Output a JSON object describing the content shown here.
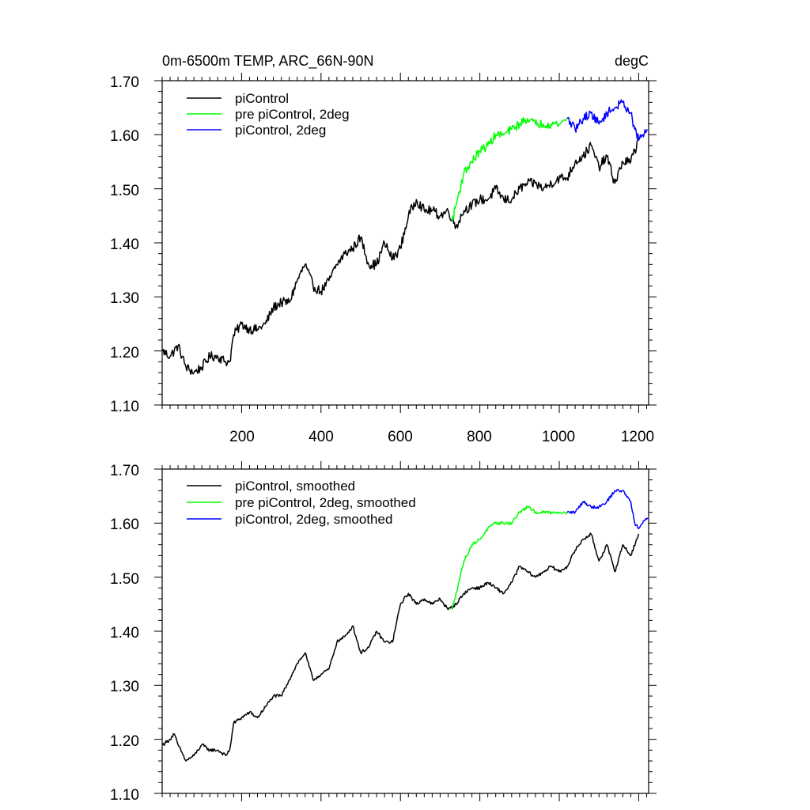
{
  "chart_data": [
    {
      "type": "line",
      "title": "0m-6500m TEMP, ARC_66N-90N",
      "units": "degC",
      "xlim": [
        0,
        1225
      ],
      "ylim": [
        1.1,
        1.7
      ],
      "yticks": [
        "1.10",
        "1.20",
        "1.30",
        "1.40",
        "1.50",
        "1.60",
        "1.70"
      ],
      "xticks": [
        "200",
        "400",
        "600",
        "800",
        "1000",
        "1200"
      ],
      "legend_position": "top-left",
      "series": [
        {
          "name": "piControl",
          "color": "#000000",
          "noise": 0.009,
          "x": [
            1,
            20,
            40,
            60,
            80,
            100,
            120,
            140,
            160,
            170,
            180,
            200,
            220,
            240,
            260,
            280,
            300,
            320,
            340,
            360,
            380,
            400,
            420,
            440,
            460,
            480,
            500,
            520,
            540,
            560,
            580,
            600,
            620,
            640,
            660,
            680,
            700,
            720,
            740,
            760,
            780,
            800,
            820,
            840,
            860,
            880,
            900,
            920,
            940,
            960,
            980,
            1000,
            1020,
            1040,
            1060,
            1080,
            1100,
            1120,
            1140,
            1160,
            1180,
            1200
          ],
          "values": [
            1.2,
            1.19,
            1.21,
            1.17,
            1.16,
            1.17,
            1.19,
            1.19,
            1.18,
            1.18,
            1.23,
            1.25,
            1.24,
            1.24,
            1.25,
            1.28,
            1.29,
            1.29,
            1.33,
            1.36,
            1.32,
            1.31,
            1.33,
            1.36,
            1.38,
            1.39,
            1.41,
            1.36,
            1.36,
            1.4,
            1.37,
            1.39,
            1.45,
            1.48,
            1.46,
            1.46,
            1.45,
            1.46,
            1.43,
            1.46,
            1.47,
            1.48,
            1.48,
            1.5,
            1.48,
            1.48,
            1.5,
            1.51,
            1.51,
            1.5,
            1.51,
            1.52,
            1.52,
            1.55,
            1.56,
            1.58,
            1.54,
            1.56,
            1.51,
            1.55,
            1.55,
            1.59
          ]
        },
        {
          "name": "pre piControl, 2deg",
          "color": "#00ff00",
          "noise": 0.008,
          "x": [
            730,
            740,
            760,
            780,
            800,
            820,
            840,
            860,
            880,
            900,
            920,
            940,
            960,
            980,
            1000,
            1020
          ],
          "values": [
            1.44,
            1.47,
            1.53,
            1.55,
            1.57,
            1.58,
            1.6,
            1.6,
            1.61,
            1.62,
            1.63,
            1.62,
            1.62,
            1.62,
            1.62,
            1.63
          ]
        },
        {
          "name": "piControl, 2deg",
          "color": "#0000ff",
          "noise": 0.008,
          "x": [
            1020,
            1040,
            1060,
            1080,
            1100,
            1120,
            1140,
            1160,
            1180,
            1190,
            1200,
            1210,
            1222
          ],
          "values": [
            1.63,
            1.61,
            1.63,
            1.64,
            1.62,
            1.64,
            1.65,
            1.66,
            1.64,
            1.61,
            1.59,
            1.6,
            1.61
          ]
        }
      ]
    },
    {
      "type": "line",
      "xlim": [
        0,
        1225
      ],
      "ylim": [
        1.1,
        1.7
      ],
      "yticks": [
        "1.10",
        "1.20",
        "1.30",
        "1.40",
        "1.50",
        "1.60",
        "1.70"
      ],
      "legend_position": "top-left",
      "series": [
        {
          "name": "piControl, smoothed",
          "color": "#000000",
          "noise": 0.003,
          "x": [
            1,
            20,
            30,
            40,
            60,
            80,
            100,
            120,
            140,
            160,
            170,
            180,
            200,
            220,
            240,
            260,
            280,
            300,
            320,
            340,
            360,
            380,
            400,
            420,
            440,
            460,
            480,
            500,
            520,
            540,
            560,
            580,
            600,
            620,
            640,
            660,
            680,
            700,
            720,
            740,
            760,
            780,
            800,
            820,
            840,
            860,
            880,
            900,
            920,
            940,
            960,
            980,
            1000,
            1020,
            1040,
            1060,
            1080,
            1100,
            1120,
            1140,
            1160,
            1180,
            1200
          ],
          "values": [
            1.19,
            1.2,
            1.21,
            1.19,
            1.16,
            1.17,
            1.19,
            1.18,
            1.18,
            1.17,
            1.18,
            1.23,
            1.24,
            1.25,
            1.24,
            1.26,
            1.28,
            1.28,
            1.31,
            1.34,
            1.36,
            1.31,
            1.32,
            1.33,
            1.38,
            1.39,
            1.41,
            1.36,
            1.37,
            1.4,
            1.38,
            1.38,
            1.45,
            1.47,
            1.45,
            1.46,
            1.45,
            1.46,
            1.44,
            1.45,
            1.47,
            1.48,
            1.48,
            1.49,
            1.48,
            1.47,
            1.49,
            1.52,
            1.51,
            1.5,
            1.51,
            1.52,
            1.51,
            1.52,
            1.55,
            1.57,
            1.58,
            1.53,
            1.56,
            1.51,
            1.56,
            1.54,
            1.58
          ]
        },
        {
          "name": "pre piControl, 2deg, smoothed",
          "color": "#00ff00",
          "noise": 0.003,
          "x": [
            730,
            740,
            760,
            780,
            800,
            820,
            840,
            860,
            880,
            900,
            920,
            940,
            960,
            980,
            1000,
            1020
          ],
          "values": [
            1.44,
            1.47,
            1.53,
            1.56,
            1.57,
            1.59,
            1.6,
            1.6,
            1.6,
            1.62,
            1.63,
            1.62,
            1.62,
            1.62,
            1.62,
            1.62
          ]
        },
        {
          "name": "piControl, 2deg, smoothed",
          "color": "#0000ff",
          "noise": 0.003,
          "x": [
            1020,
            1040,
            1060,
            1080,
            1100,
            1120,
            1140,
            1160,
            1180,
            1190,
            1200,
            1210,
            1222
          ],
          "values": [
            1.62,
            1.62,
            1.64,
            1.63,
            1.63,
            1.64,
            1.66,
            1.66,
            1.64,
            1.6,
            1.59,
            1.6,
            1.61
          ]
        }
      ]
    }
  ]
}
